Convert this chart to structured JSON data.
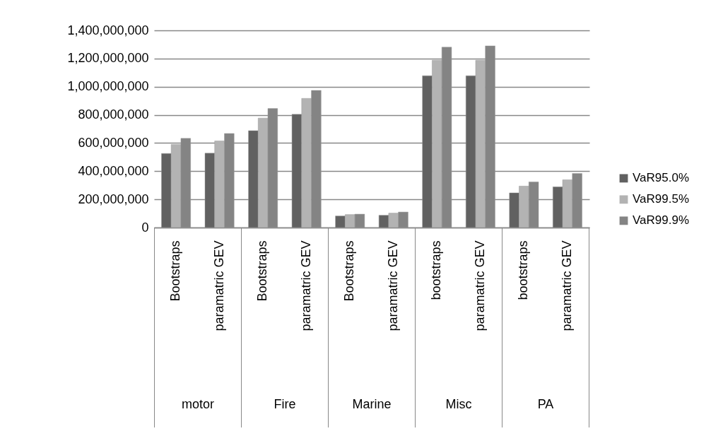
{
  "chart_data": {
    "type": "bar",
    "categories": [
      "Bootstraps",
      "paramatric GEV",
      "Bootstraps",
      "paramatric GEV",
      "Bootstraps",
      "paramatric GEV",
      "bootstraps",
      "paramatric GEV",
      "bootstraps",
      "paramatric GEV"
    ],
    "series": [
      {
        "name": "VaR95.0%",
        "color": "#616161",
        "values": [
          526000000,
          528000000,
          688000000,
          804000000,
          82000000,
          87000000,
          1078000000,
          1078000000,
          246000000,
          289000000
        ]
      },
      {
        "name": "VaR99.5%",
        "color": "#b3b3b3",
        "values": [
          590000000,
          615000000,
          777000000,
          917000000,
          92000000,
          102000000,
          1188000000,
          1188000000,
          294000000,
          339000000
        ]
      },
      {
        "name": "VaR99.9%",
        "color": "#848484",
        "values": [
          633000000,
          668000000,
          845000000,
          974000000,
          95000000,
          110000000,
          1281000000,
          1290000000,
          324000000,
          384000000
        ]
      }
    ],
    "annotations": [
      "motor",
      "Fire",
      "Marine",
      "Misc",
      "PA"
    ],
    "ylim": [
      0,
      1400000000
    ],
    "yticks": [
      0,
      {
        "value": 200000000,
        "label": "200,000,000"
      },
      {
        "value": 400000000,
        "label": "400,000,000"
      },
      {
        "value": 600000000,
        "label": "600,000,000"
      },
      {
        "value": 800000000,
        "label": "800,000,000"
      },
      {
        "value": 1000000000,
        "label": "1,000,000,000"
      },
      {
        "value": 1200000000,
        "label": "1,200,000,000"
      },
      {
        "value": 1400000000,
        "label": "1,400,000,000"
      }
    ],
    "grid": "y",
    "legend": "right"
  }
}
